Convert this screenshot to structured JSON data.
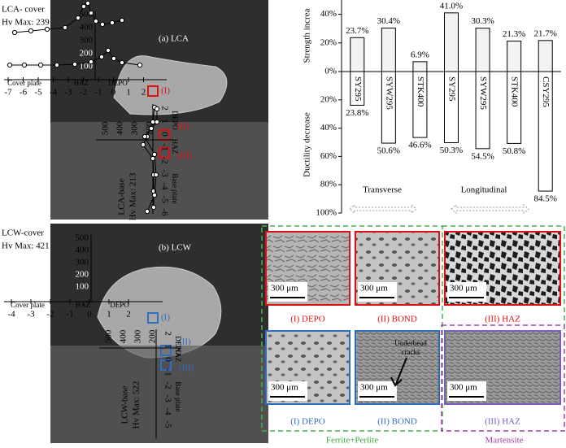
{
  "panel_a": {
    "title": "(a) LCA",
    "cover_label": "LCA- cover",
    "cover_hv": "Hv Max: 239",
    "base_label": "LCA-base",
    "base_hv": "Hv Max: 213",
    "hv_ticks": [
      "500",
      "400",
      "300",
      "200",
      "100"
    ],
    "x_ticks": [
      "-7",
      "-6",
      "-5",
      "-4",
      "-3",
      "-2",
      "-1",
      "0",
      "1",
      "2"
    ],
    "cover_plate": "Cover plate",
    "haz": "HAZ",
    "depo": "DEPO",
    "base_plate": "Base plate",
    "base_hv_ticks": [
      "500",
      "400",
      "300",
      "200"
    ],
    "base_ticks": [
      "2",
      "1",
      "0",
      "-1",
      "-2",
      "-3",
      "-4",
      "-5",
      "-6"
    ],
    "regions": [
      "(I)",
      "(II)",
      "(III)"
    ]
  },
  "panel_b": {
    "title": "(b) LCW",
    "cover_label": "LCW-cover",
    "cover_hv": "Hv Max: 421",
    "base_label": "LCW-base",
    "base_hv": "Hv Max: 522",
    "hv_ticks": [
      "500",
      "400",
      "300",
      "200",
      "100"
    ],
    "x_ticks": [
      "-4",
      "-3",
      "-2",
      "-1",
      "0",
      "1",
      "2"
    ],
    "cover_plate": "Cover plate",
    "haz": "HAZ",
    "depo": "DEPO",
    "base_plate": "Base plate",
    "base_hv_ticks": [
      "500",
      "400",
      "300",
      "200"
    ],
    "base_ticks": [
      "2",
      "1",
      "0",
      "-1",
      "-2",
      "-3",
      "-4",
      "-5"
    ],
    "regions": [
      "(I)",
      "(II)",
      "(III)"
    ]
  },
  "chart_data": {
    "type": "bar",
    "ylabel": "Strength increa",
    "y2label": "Ductility decrease",
    "categories": [
      "SY295",
      "SYW295",
      "STK400",
      "SY295",
      "SYW295",
      "STK400",
      "CSY295"
    ],
    "group_labels": [
      "Transverse",
      "Longitudinal"
    ],
    "series": [
      {
        "values": [
          23.7,
          30.4,
          6.9,
          41.0,
          30.3,
          21.3,
          21.7
        ],
        "value_labels": [
          "23.7%",
          "30.4%",
          "6.9%",
          "41.0%",
          "30.3%",
          "21.3%",
          "21.7%"
        ],
        "color": "#f2f2f2"
      },
      {
        "axis": "y2",
        "values": [
          23.8,
          50.6,
          46.6,
          50.3,
          54.5,
          50.8,
          84.5
        ],
        "value_labels": [
          "23.8%",
          "50.6%",
          "46.6%",
          "50.3%",
          "54.5%",
          "50.8%",
          "84.5%"
        ],
        "color": "#ffffff"
      }
    ],
    "ylim": [
      0,
      50
    ],
    "yticks": [
      {
        "value": 0,
        "label": "0%"
      },
      {
        "value": 20,
        "label": "20%"
      },
      {
        "value": 40,
        "label": "40%"
      }
    ],
    "y2lim": [
      0,
      100
    ],
    "y2ticks": [
      {
        "value": 20,
        "label": "20%"
      },
      {
        "value": 40,
        "label": "40%"
      },
      {
        "value": 60,
        "label": "60%"
      },
      {
        "value": 80,
        "label": "80%"
      },
      {
        "value": 100,
        "label": "100%"
      }
    ]
  },
  "micrographs": {
    "scale": "300 μm",
    "ferrite": "Ferrite+Perlite",
    "martensite": "Martensite",
    "crack_note": [
      "Underbead",
      "cracks"
    ],
    "captions": [
      "(I) DEPO",
      "(II) BOND",
      "(III) HAZ",
      "(I) DEPO",
      "(II) BOND",
      "(III) HAZ"
    ]
  }
}
